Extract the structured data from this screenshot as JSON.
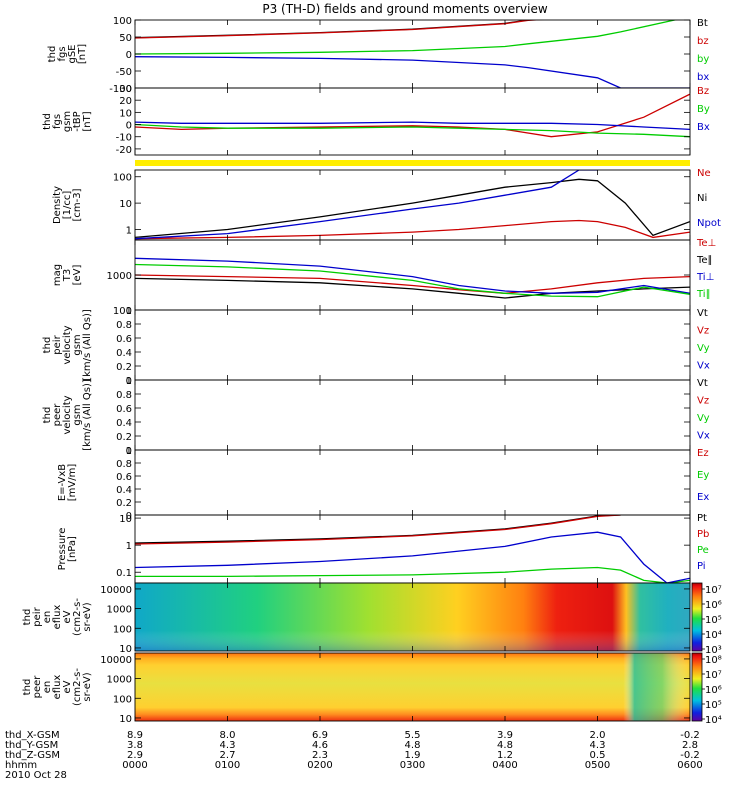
{
  "title": "P3 (TH-D) fields and ground moments overview",
  "chart_data": [
    {
      "type": "line",
      "panel": "fgs_gse",
      "ylabel": [
        "thd",
        "fgs",
        "gSE",
        "[nT]"
      ],
      "ylim": [
        -100,
        100
      ],
      "yticks": [
        100,
        50,
        0,
        -50,
        -100
      ],
      "x_hours": [
        0,
        1,
        2,
        3,
        4,
        4.25,
        5,
        5.25,
        6
      ],
      "series": [
        {
          "name": "Bt",
          "color": "#000000",
          "values": [
            48,
            55,
            63,
            73,
            90,
            100,
            112,
            120,
            120
          ]
        },
        {
          "name": "bz",
          "color": "#cc0000",
          "values": [
            47,
            54,
            62,
            72,
            89,
            99,
            111,
            120,
            120
          ]
        },
        {
          "name": "by",
          "color": "#00cc00",
          "values": [
            0,
            2,
            5,
            10,
            22,
            30,
            52,
            65,
            110
          ]
        },
        {
          "name": "bx",
          "color": "#0000cc",
          "values": [
            -8,
            -10,
            -13,
            -18,
            -32,
            -40,
            -70,
            -100,
            -100
          ]
        }
      ]
    },
    {
      "type": "line",
      "panel": "fgs_gsm",
      "ylabel": [
        "thd",
        "fgs",
        "gsm",
        "-tBP",
        "[nT]"
      ],
      "ylim": [
        -25,
        30
      ],
      "yticks": [
        30,
        20,
        10,
        0,
        -10,
        -20
      ],
      "x_hours": [
        0,
        0.5,
        1,
        2,
        3,
        3.5,
        4,
        4.5,
        5,
        5.5,
        6
      ],
      "series": [
        {
          "name": "Bz",
          "color": "#cc0000",
          "values": [
            -2,
            -4,
            -3,
            -2,
            -1,
            -2,
            -4,
            -10,
            -6,
            6,
            25
          ]
        },
        {
          "name": "By",
          "color": "#00cc00",
          "values": [
            0,
            -2,
            -3,
            -3,
            -2,
            -3,
            -4,
            -5,
            -7,
            -8,
            -10
          ]
        },
        {
          "name": "Bx",
          "color": "#0000cc",
          "values": [
            2,
            1,
            1,
            1,
            2,
            1,
            1,
            1,
            0,
            -2,
            -4
          ]
        }
      ]
    },
    {
      "type": "line",
      "panel": "density",
      "yscale": "log",
      "ylabel": [
        "Density",
        "[1/cc]",
        "[cm-3]"
      ],
      "ylim": [
        0.4,
        180
      ],
      "yticks": [
        100,
        10,
        1
      ],
      "x_hours": [
        0,
        1,
        2,
        3,
        3.5,
        4,
        4.5,
        4.8,
        5,
        5.3,
        5.6,
        6
      ],
      "series": [
        {
          "name": "Ne",
          "color": "#cc0000",
          "values": [
            0.45,
            0.5,
            0.6,
            0.8,
            1.0,
            1.4,
            2.0,
            2.2,
            2.0,
            1.2,
            0.5,
            0.8
          ]
        },
        {
          "name": "Ni",
          "color": "#000000",
          "values": [
            0.5,
            1.0,
            3.0,
            10,
            20,
            40,
            60,
            80,
            70,
            10,
            0.6,
            2
          ]
        },
        {
          "name": "Npot",
          "color": "#0000cc",
          "values": [
            0.45,
            0.7,
            2.0,
            6,
            10,
            20,
            40,
            180,
            180,
            null,
            null,
            null
          ]
        }
      ]
    },
    {
      "type": "line",
      "panel": "temperature",
      "yscale": "log",
      "ylabel": [
        "mag",
        "T3",
        "[eV]"
      ],
      "ylim": [
        100,
        10000
      ],
      "yticks": [
        1000,
        100
      ],
      "x_hours": [
        0,
        1,
        2,
        3,
        3.5,
        4,
        4.5,
        5,
        5.5,
        6
      ],
      "series": [
        {
          "name": "Te⊥",
          "color": "#cc0000",
          "values": [
            1000,
            900,
            800,
            500,
            380,
            300,
            400,
            600,
            800,
            900
          ]
        },
        {
          "name": "Te∥",
          "color": "#000000",
          "values": [
            800,
            700,
            600,
            400,
            300,
            220,
            300,
            350,
            400,
            450
          ]
        },
        {
          "name": "Ti⊥",
          "color": "#0000cc",
          "values": [
            3000,
            2500,
            1800,
            900,
            500,
            350,
            300,
            320,
            500,
            300
          ]
        },
        {
          "name": "Ti∥",
          "color": "#00cc00",
          "values": [
            2000,
            1700,
            1300,
            700,
            400,
            300,
            250,
            240,
            450,
            280
          ]
        }
      ]
    },
    {
      "type": "line",
      "panel": "peir_velocity",
      "ylabel": [
        "thd",
        "peir",
        "velocity",
        "gsm",
        "[km/s (All Qs)]"
      ],
      "ylim": [
        0,
        1
      ],
      "yticks": [
        1.0,
        0.8,
        0.6,
        0.4,
        0.2,
        0.0
      ],
      "series": [
        {
          "name": "Vt",
          "color": "#000000"
        },
        {
          "name": "Vz",
          "color": "#cc0000"
        },
        {
          "name": "Vy",
          "color": "#00cc00"
        },
        {
          "name": "Vx",
          "color": "#0000cc"
        }
      ]
    },
    {
      "type": "line",
      "panel": "peer_velocity",
      "ylabel": [
        "thd",
        "peer",
        "velocity",
        "gsm",
        "[km/s (All Qs)]"
      ],
      "ylim": [
        0,
        1
      ],
      "yticks": [
        1.0,
        0.8,
        0.6,
        0.4,
        0.2,
        0.0
      ],
      "series": [
        {
          "name": "Vt",
          "color": "#000000"
        },
        {
          "name": "Vz",
          "color": "#cc0000"
        },
        {
          "name": "Vy",
          "color": "#00cc00"
        },
        {
          "name": "Vx",
          "color": "#0000cc"
        }
      ]
    },
    {
      "type": "line",
      "panel": "efield",
      "ylabel": [
        "E=-VxB",
        "[mV/m]"
      ],
      "ylim": [
        0,
        1
      ],
      "yticks": [
        1.0,
        0.8,
        0.6,
        0.4,
        0.2,
        0.0
      ],
      "series": [
        {
          "name": "Ez",
          "color": "#cc0000"
        },
        {
          "name": "Ey",
          "color": "#00cc00"
        },
        {
          "name": "Ex",
          "color": "#0000cc"
        }
      ]
    },
    {
      "type": "line",
      "panel": "pressure",
      "yscale": "log",
      "ylabel": [
        "Pressure",
        "[nPa]"
      ],
      "ylim": [
        0.04,
        13
      ],
      "yticks": [
        10.0,
        1.0,
        0.1
      ],
      "x_hours": [
        0,
        1,
        2,
        3,
        4,
        4.5,
        5,
        5.25,
        5.5,
        5.75,
        6
      ],
      "series": [
        {
          "name": "Pt",
          "color": "#000000",
          "values": [
            1.2,
            1.4,
            1.7,
            2.3,
            4.0,
            6.5,
            12,
            13,
            null,
            null,
            null
          ]
        },
        {
          "name": "Pb",
          "color": "#cc0000",
          "values": [
            1.1,
            1.3,
            1.6,
            2.2,
            3.8,
            6.2,
            11.5,
            13,
            null,
            null,
            null
          ]
        },
        {
          "name": "Pe",
          "color": "#00cc00",
          "values": [
            0.07,
            0.07,
            0.075,
            0.08,
            0.1,
            0.13,
            0.15,
            0.12,
            0.05,
            0.04,
            0.05
          ]
        },
        {
          "name": "Pi",
          "color": "#0000cc",
          "values": [
            0.15,
            0.18,
            0.25,
            0.4,
            0.9,
            2.0,
            3.0,
            2.0,
            0.2,
            0.04,
            0.06
          ]
        }
      ]
    },
    {
      "type": "heatmap",
      "panel": "peir_eflux",
      "ylabel": [
        "thd",
        "peir",
        "en",
        "eflux",
        "eV",
        "(cm2-s-",
        "sr-eV)"
      ],
      "yscale": "log",
      "ylim": [
        7,
        20000
      ],
      "yticks": [
        10000,
        1000,
        100,
        10
      ],
      "colorbar": {
        "min_exp": 3,
        "max_exp": 7,
        "labels": [
          "10⁷",
          "10⁶",
          "10⁵",
          "10⁴",
          "10³"
        ]
      }
    },
    {
      "type": "heatmap",
      "panel": "peer_eflux",
      "ylabel": [
        "thd",
        "peer",
        "en",
        "eflux",
        "eV",
        "(cm2-s-",
        "sr-eV)"
      ],
      "yscale": "log",
      "ylim": [
        7,
        20000
      ],
      "yticks": [
        10000,
        1000,
        100,
        10
      ],
      "colorbar": {
        "min_exp": 4,
        "max_exp": 8,
        "labels": [
          "10⁸",
          "10⁷",
          "10⁶",
          "10⁵",
          "10⁴"
        ]
      }
    }
  ],
  "x_axis": {
    "rows": [
      {
        "label": "thd_X-GSM",
        "values": [
          "8.9",
          "8.0",
          "6.9",
          "5.5",
          "3.9",
          "2.0",
          "-0.2"
        ]
      },
      {
        "label": "thd_Y-GSM",
        "values": [
          "3.8",
          "4.3",
          "4.6",
          "4.8",
          "4.8",
          "4.3",
          "2.8"
        ]
      },
      {
        "label": "thd_Z-GSM",
        "values": [
          "2.9",
          "2.7",
          "2.3",
          "1.9",
          "1.2",
          "0.5",
          "-0.2"
        ]
      },
      {
        "label": "hhmm",
        "values": [
          "0000",
          "0100",
          "0200",
          "0300",
          "0400",
          "0500",
          "0600"
        ]
      }
    ],
    "date": "2010 Oct 28"
  },
  "colors": {
    "black": "#000000",
    "red": "#cc0000",
    "green": "#00cc00",
    "blue": "#0000cc",
    "separator": "#ffee00"
  }
}
